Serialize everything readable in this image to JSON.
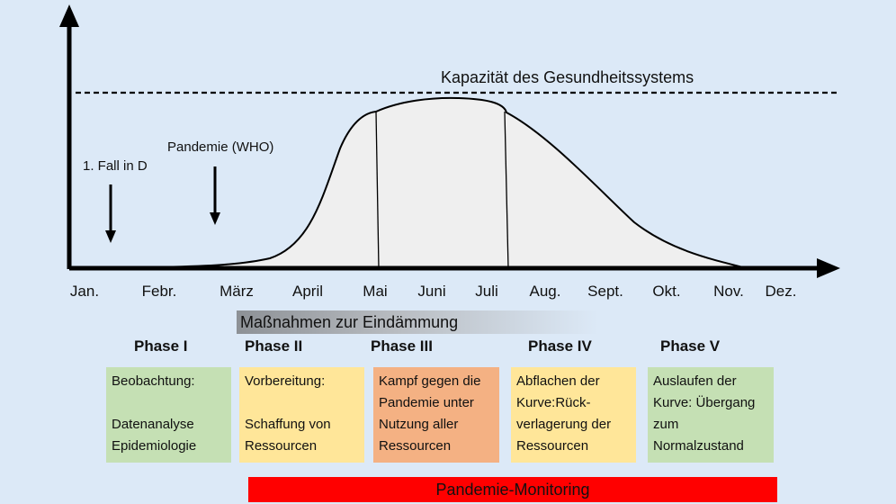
{
  "capacity_label": "Kapazität des Gesundheitssystems",
  "event_labels": {
    "first_case": "1. Fall in D",
    "pandemic": "Pandemie (WHO)"
  },
  "months": [
    "Jan.",
    "Febr.",
    "März",
    "April",
    "Mai",
    "Juni",
    "Juli",
    "Aug.",
    "Sept.",
    "Okt.",
    "Nov.",
    "Dez."
  ],
  "measures_label": "Maßnahmen zur Eindämmung",
  "phases": [
    {
      "title": "Phase I",
      "text": "Beobachtung:\n\nDatenanalyse\nEpidemiologie",
      "color": "#c5e0b4"
    },
    {
      "title": "Phase II",
      "text": "Vorbereitung:\n\n Schaffung von\nRessourcen",
      "color": "#ffe699"
    },
    {
      "title": "Phase III",
      "text": "Kampf gegen die\nPandemie  unter\nNutzung aller\nRessourcen",
      "color": "#f4b183"
    },
    {
      "title": "Phase IV",
      "text": "Abflachen der\nKurve:Rück-\nverlagerung der\nRessourcen",
      "color": "#ffe699"
    },
    {
      "title": "Phase V",
      "text": "Auslaufen der\nKurve: Übergang\nzum\nNormalzustand",
      "color": "#c5e0b4"
    }
  ],
  "monitoring_label": "Pandemie-Monitoring",
  "colors": {
    "background": "#dce9f7",
    "curve_fill": "#efefef",
    "monitoring_bar": "#ff0000"
  }
}
